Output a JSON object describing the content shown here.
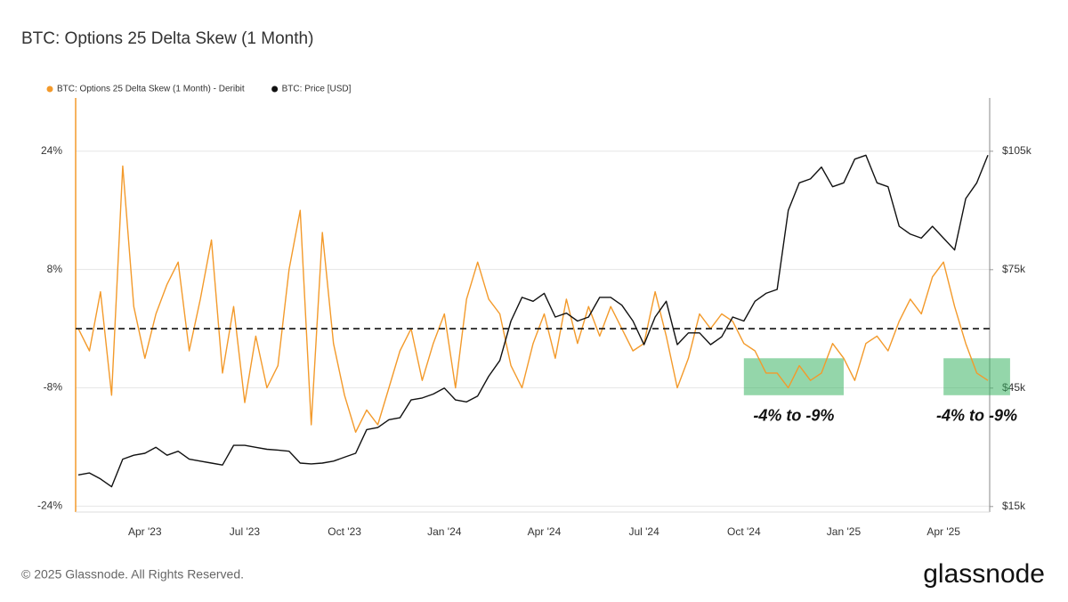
{
  "chart_data": {
    "type": "line",
    "title": "BTC: Options 25 Delta Skew (1 Month)",
    "categories": [
      null,
      null,
      null,
      null,
      null,
      null,
      "Apr '23",
      null,
      null,
      null,
      null,
      null,
      null,
      null,
      null,
      "Jul '23",
      null,
      null,
      null,
      null,
      null,
      null,
      null,
      null,
      "Oct '23",
      null,
      null,
      null,
      null,
      null,
      null,
      null,
      null,
      "Jan '24",
      null,
      null,
      null,
      null,
      null,
      null,
      null,
      null,
      "Apr '24",
      null,
      null,
      null,
      null,
      null,
      null,
      null,
      null,
      "Jul '24",
      null,
      null,
      null,
      null,
      null,
      null,
      null,
      null,
      "Oct '24",
      null,
      null,
      null,
      null,
      null,
      null,
      null,
      null,
      "Jan '25",
      null,
      null,
      null,
      null,
      null,
      null,
      null,
      null,
      "Apr '25",
      null,
      null,
      null,
      null
    ],
    "series": [
      {
        "name": "BTC: Options 25 Delta Skew (1 Month) - Deribit",
        "color": "#f39a2b",
        "axis": "y",
        "values": [
          0,
          -3,
          5,
          -9,
          22,
          3,
          -4,
          2,
          6,
          9,
          -3,
          4,
          12,
          -6,
          3,
          -10,
          -1,
          -8,
          -5,
          8,
          16,
          -13,
          13,
          -2,
          -9,
          -14,
          -11,
          -13,
          -8,
          -3,
          0,
          -7,
          -2,
          2,
          -8,
          4,
          9,
          4,
          2,
          -5,
          -8,
          -2,
          2,
          -4,
          4,
          -2,
          3,
          -1,
          3,
          0,
          -3,
          -2,
          5,
          -1,
          -8,
          -4,
          2,
          0,
          2,
          1,
          -2,
          -3,
          -6,
          -6,
          -8,
          -5,
          -7,
          -6,
          -2,
          -4,
          -7,
          -2,
          -1,
          -3,
          1,
          4,
          2,
          7,
          9,
          3,
          -2,
          -6,
          -7
        ]
      },
      {
        "name": "BTC: Price [USD]",
        "color": "#111111",
        "axis": "y2",
        "values": [
          23000,
          23500,
          22000,
          20000,
          27000,
          28000,
          28500,
          30000,
          28000,
          29000,
          27000,
          26500,
          26000,
          25500,
          30500,
          30500,
          30000,
          29500,
          29300,
          29000,
          26000,
          25800,
          26000,
          26500,
          27500,
          28500,
          34500,
          35000,
          37000,
          37500,
          42000,
          42500,
          43500,
          45000,
          42000,
          41500,
          43000,
          48000,
          52000,
          62000,
          68000,
          67000,
          69000,
          63000,
          64000,
          62000,
          63000,
          68000,
          68000,
          66000,
          62000,
          56000,
          63000,
          67000,
          56000,
          59000,
          59000,
          56000,
          58000,
          63000,
          62000,
          67000,
          69000,
          70000,
          90000,
          97000,
          98000,
          101000,
          96000,
          97000,
          103000,
          104000,
          97000,
          96000,
          86000,
          84000,
          83000,
          86000,
          83000,
          80000,
          93000,
          97000,
          104000
        ]
      }
    ],
    "ylim": [
      -24.8,
      31.2
    ],
    "yticks": [
      {
        "value": -24,
        "label": "-24%"
      },
      {
        "value": -8,
        "label": "-8%"
      },
      {
        "value": 8,
        "label": "8%"
      },
      {
        "value": 24,
        "label": "24%"
      }
    ],
    "y2lim": [
      13600,
      118500
    ],
    "y2ticks": [
      {
        "value": 15000,
        "label": "$15k"
      },
      {
        "value": 45000,
        "label": "$45k"
      },
      {
        "value": 75000,
        "label": "$75k"
      },
      {
        "value": 105000,
        "label": "$105k"
      }
    ],
    "reference_line": 0,
    "grid": true,
    "legend": "top-left",
    "annotations": [
      {
        "text": "-4% to -9%",
        "y_range": [
          -4,
          -9
        ],
        "x_range": [
          "2024-10",
          "2025-01"
        ]
      },
      {
        "text": "-4% to -9%",
        "y_range": [
          -4,
          -9
        ],
        "x_range": [
          "2025-04",
          "2025-06"
        ]
      }
    ]
  },
  "footer": {
    "copyright": "© 2025 Glassnode. All Rights Reserved.",
    "logo": "glassnode"
  }
}
